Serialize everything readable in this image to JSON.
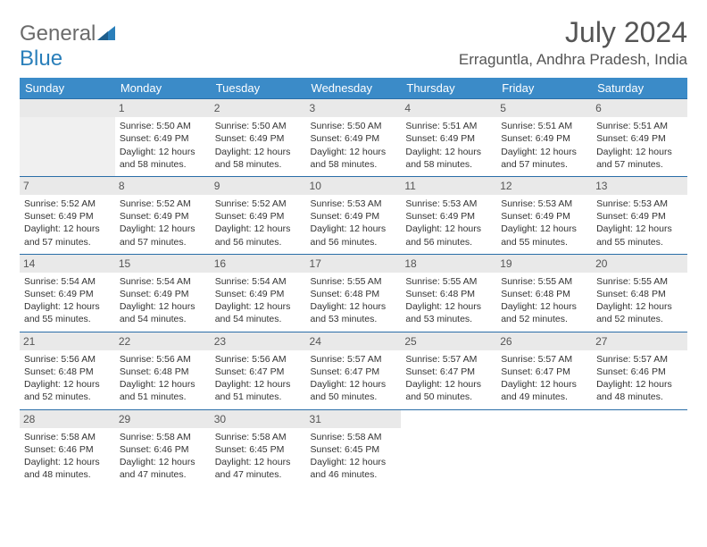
{
  "brand": {
    "name1": "General",
    "name2": "Blue"
  },
  "title": "July 2024",
  "location": "Erraguntla, Andhra Pradesh, India",
  "header_bg": "#3b8bc8",
  "header_fg": "#ffffff",
  "row_border": "#2a6ea8",
  "daynum_bg": "#e9e9e9",
  "day_headers": [
    "Sunday",
    "Monday",
    "Tuesday",
    "Wednesday",
    "Thursday",
    "Friday",
    "Saturday"
  ],
  "first_weekday": 1,
  "days_in_month": 31,
  "days": {
    "1": {
      "sunrise": "5:50 AM",
      "sunset": "6:49 PM",
      "daylight": "12 hours and 58 minutes."
    },
    "2": {
      "sunrise": "5:50 AM",
      "sunset": "6:49 PM",
      "daylight": "12 hours and 58 minutes."
    },
    "3": {
      "sunrise": "5:50 AM",
      "sunset": "6:49 PM",
      "daylight": "12 hours and 58 minutes."
    },
    "4": {
      "sunrise": "5:51 AM",
      "sunset": "6:49 PM",
      "daylight": "12 hours and 58 minutes."
    },
    "5": {
      "sunrise": "5:51 AM",
      "sunset": "6:49 PM",
      "daylight": "12 hours and 57 minutes."
    },
    "6": {
      "sunrise": "5:51 AM",
      "sunset": "6:49 PM",
      "daylight": "12 hours and 57 minutes."
    },
    "7": {
      "sunrise": "5:52 AM",
      "sunset": "6:49 PM",
      "daylight": "12 hours and 57 minutes."
    },
    "8": {
      "sunrise": "5:52 AM",
      "sunset": "6:49 PM",
      "daylight": "12 hours and 57 minutes."
    },
    "9": {
      "sunrise": "5:52 AM",
      "sunset": "6:49 PM",
      "daylight": "12 hours and 56 minutes."
    },
    "10": {
      "sunrise": "5:53 AM",
      "sunset": "6:49 PM",
      "daylight": "12 hours and 56 minutes."
    },
    "11": {
      "sunrise": "5:53 AM",
      "sunset": "6:49 PM",
      "daylight": "12 hours and 56 minutes."
    },
    "12": {
      "sunrise": "5:53 AM",
      "sunset": "6:49 PM",
      "daylight": "12 hours and 55 minutes."
    },
    "13": {
      "sunrise": "5:53 AM",
      "sunset": "6:49 PM",
      "daylight": "12 hours and 55 minutes."
    },
    "14": {
      "sunrise": "5:54 AM",
      "sunset": "6:49 PM",
      "daylight": "12 hours and 55 minutes."
    },
    "15": {
      "sunrise": "5:54 AM",
      "sunset": "6:49 PM",
      "daylight": "12 hours and 54 minutes."
    },
    "16": {
      "sunrise": "5:54 AM",
      "sunset": "6:49 PM",
      "daylight": "12 hours and 54 minutes."
    },
    "17": {
      "sunrise": "5:55 AM",
      "sunset": "6:48 PM",
      "daylight": "12 hours and 53 minutes."
    },
    "18": {
      "sunrise": "5:55 AM",
      "sunset": "6:48 PM",
      "daylight": "12 hours and 53 minutes."
    },
    "19": {
      "sunrise": "5:55 AM",
      "sunset": "6:48 PM",
      "daylight": "12 hours and 52 minutes."
    },
    "20": {
      "sunrise": "5:55 AM",
      "sunset": "6:48 PM",
      "daylight": "12 hours and 52 minutes."
    },
    "21": {
      "sunrise": "5:56 AM",
      "sunset": "6:48 PM",
      "daylight": "12 hours and 52 minutes."
    },
    "22": {
      "sunrise": "5:56 AM",
      "sunset": "6:48 PM",
      "daylight": "12 hours and 51 minutes."
    },
    "23": {
      "sunrise": "5:56 AM",
      "sunset": "6:47 PM",
      "daylight": "12 hours and 51 minutes."
    },
    "24": {
      "sunrise": "5:57 AM",
      "sunset": "6:47 PM",
      "daylight": "12 hours and 50 minutes."
    },
    "25": {
      "sunrise": "5:57 AM",
      "sunset": "6:47 PM",
      "daylight": "12 hours and 50 minutes."
    },
    "26": {
      "sunrise": "5:57 AM",
      "sunset": "6:47 PM",
      "daylight": "12 hours and 49 minutes."
    },
    "27": {
      "sunrise": "5:57 AM",
      "sunset": "6:46 PM",
      "daylight": "12 hours and 48 minutes."
    },
    "28": {
      "sunrise": "5:58 AM",
      "sunset": "6:46 PM",
      "daylight": "12 hours and 48 minutes."
    },
    "29": {
      "sunrise": "5:58 AM",
      "sunset": "6:46 PM",
      "daylight": "12 hours and 47 minutes."
    },
    "30": {
      "sunrise": "5:58 AM",
      "sunset": "6:45 PM",
      "daylight": "12 hours and 47 minutes."
    },
    "31": {
      "sunrise": "5:58 AM",
      "sunset": "6:45 PM",
      "daylight": "12 hours and 46 minutes."
    }
  },
  "labels": {
    "sunrise": "Sunrise:",
    "sunset": "Sunset:",
    "daylight": "Daylight:"
  }
}
